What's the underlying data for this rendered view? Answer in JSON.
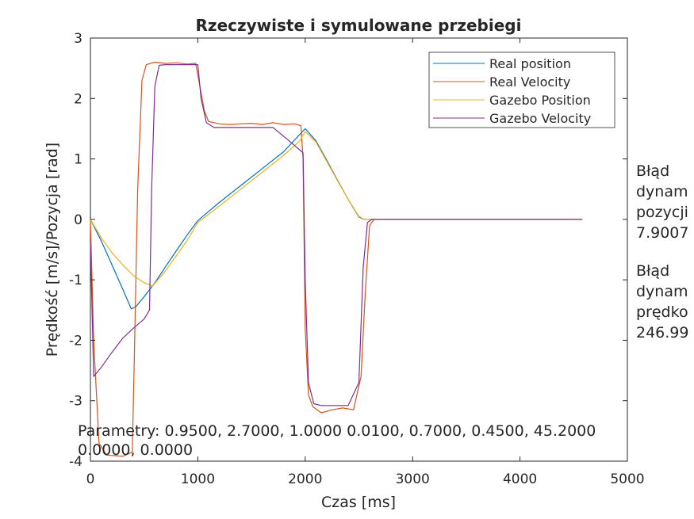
{
  "chart_data": {
    "type": "line",
    "title": "Rzeczywiste i symulowane przebiegi",
    "xlabel": "Czas [ms]",
    "ylabel": "Prędkość [m/s]/Pozycja [rad]",
    "xlim": [
      0,
      5000
    ],
    "ylim": [
      -4,
      3
    ],
    "x_ticks": [
      0,
      1000,
      2000,
      3000,
      4000,
      5000
    ],
    "x_tick_labels": [
      "0",
      "1000",
      "2000",
      "3000",
      "4000",
      "5000"
    ],
    "y_ticks": [
      -4,
      -3,
      -2,
      -1,
      0,
      1,
      2,
      3
    ],
    "y_tick_labels": [
      "-4",
      "-3",
      "-2",
      "-1",
      "0",
      "1",
      "2",
      "3"
    ],
    "grid": false,
    "legend_position": "top-right",
    "series": [
      {
        "name": "Real position",
        "color": "#0072BD",
        "points": [
          [
            0,
            0
          ],
          [
            100,
            -0.35
          ],
          [
            200,
            -0.75
          ],
          [
            300,
            -1.15
          ],
          [
            380,
            -1.48
          ],
          [
            420,
            -1.45
          ],
          [
            500,
            -1.28
          ],
          [
            600,
            -1.05
          ],
          [
            700,
            -0.78
          ],
          [
            800,
            -0.52
          ],
          [
            900,
            -0.26
          ],
          [
            1000,
            -0.02
          ],
          [
            1200,
            0.28
          ],
          [
            1400,
            0.56
          ],
          [
            1600,
            0.84
          ],
          [
            1800,
            1.12
          ],
          [
            2000,
            1.5
          ],
          [
            2100,
            1.3
          ],
          [
            2200,
            0.98
          ],
          [
            2300,
            0.65
          ],
          [
            2400,
            0.33
          ],
          [
            2500,
            0.04
          ],
          [
            2550,
            0.0
          ],
          [
            4580,
            0.0
          ]
        ]
      },
      {
        "name": "Real Velocity",
        "color": "#D95319",
        "points": [
          [
            0,
            0.0
          ],
          [
            30,
            -2.0
          ],
          [
            80,
            -3.7
          ],
          [
            150,
            -3.9
          ],
          [
            300,
            -3.92
          ],
          [
            390,
            -3.85
          ],
          [
            410,
            -2.2
          ],
          [
            440,
            0.5
          ],
          [
            480,
            2.3
          ],
          [
            520,
            2.56
          ],
          [
            600,
            2.6
          ],
          [
            700,
            2.58
          ],
          [
            800,
            2.59
          ],
          [
            900,
            2.57
          ],
          [
            980,
            2.58
          ],
          [
            1020,
            2.2
          ],
          [
            1060,
            1.8
          ],
          [
            1100,
            1.62
          ],
          [
            1200,
            1.58
          ],
          [
            1300,
            1.57
          ],
          [
            1400,
            1.58
          ],
          [
            1500,
            1.59
          ],
          [
            1600,
            1.57
          ],
          [
            1700,
            1.6
          ],
          [
            1800,
            1.57
          ],
          [
            1900,
            1.58
          ],
          [
            1960,
            1.55
          ],
          [
            1980,
            1.0
          ],
          [
            2000,
            -1.8
          ],
          [
            2030,
            -2.9
          ],
          [
            2070,
            -3.1
          ],
          [
            2150,
            -3.2
          ],
          [
            2250,
            -3.15
          ],
          [
            2350,
            -3.12
          ],
          [
            2450,
            -3.15
          ],
          [
            2520,
            -2.6
          ],
          [
            2560,
            -1.2
          ],
          [
            2600,
            -0.1
          ],
          [
            2640,
            0.0
          ],
          [
            4580,
            0.0
          ]
        ]
      },
      {
        "name": "Gazebo Position",
        "color": "#EDB120",
        "points": [
          [
            0,
            0
          ],
          [
            100,
            -0.3
          ],
          [
            200,
            -0.55
          ],
          [
            300,
            -0.75
          ],
          [
            400,
            -0.93
          ],
          [
            500,
            -1.05
          ],
          [
            580,
            -1.1
          ],
          [
            700,
            -0.85
          ],
          [
            800,
            -0.6
          ],
          [
            900,
            -0.35
          ],
          [
            1000,
            -0.05
          ],
          [
            1200,
            0.22
          ],
          [
            1400,
            0.5
          ],
          [
            1600,
            0.78
          ],
          [
            1800,
            1.06
          ],
          [
            1950,
            1.3
          ],
          [
            2000,
            1.45
          ],
          [
            2100,
            1.28
          ],
          [
            2200,
            0.96
          ],
          [
            2300,
            0.64
          ],
          [
            2400,
            0.33
          ],
          [
            2500,
            0.05
          ],
          [
            2550,
            0.0
          ],
          [
            4580,
            0.0
          ]
        ]
      },
      {
        "name": "Gazebo Velocity",
        "color": "#7E2F8E",
        "points": [
          [
            0,
            -0.35
          ],
          [
            30,
            -2.6
          ],
          [
            100,
            -2.45
          ],
          [
            200,
            -2.2
          ],
          [
            300,
            -1.97
          ],
          [
            400,
            -1.8
          ],
          [
            500,
            -1.65
          ],
          [
            550,
            -1.5
          ],
          [
            570,
            0.5
          ],
          [
            600,
            2.2
          ],
          [
            640,
            2.55
          ],
          [
            700,
            2.56
          ],
          [
            1000,
            2.56
          ],
          [
            1030,
            2.0
          ],
          [
            1080,
            1.6
          ],
          [
            1150,
            1.52
          ],
          [
            1700,
            1.52
          ],
          [
            1850,
            1.3
          ],
          [
            1980,
            1.1
          ],
          [
            2000,
            -1.0
          ],
          [
            2030,
            -2.7
          ],
          [
            2080,
            -3.05
          ],
          [
            2150,
            -3.08
          ],
          [
            2400,
            -3.08
          ],
          [
            2500,
            -2.7
          ],
          [
            2540,
            -0.8
          ],
          [
            2580,
            -0.05
          ],
          [
            2620,
            0.0
          ],
          [
            4580,
            0.0
          ]
        ]
      }
    ],
    "annotations": {
      "params_line1": "Parametry: 0.9500, 2.7000, 1.0000 0.0100, 0.7000, 0.4500, 45.2000",
      "params_line2": "0.0000, 0.0000",
      "error_position": [
        "Błąd",
        "dynam",
        "pozycji",
        "7.9007"
      ],
      "error_velocity": [
        "Błąd",
        "dynam",
        "prędko",
        "246.99"
      ]
    }
  }
}
